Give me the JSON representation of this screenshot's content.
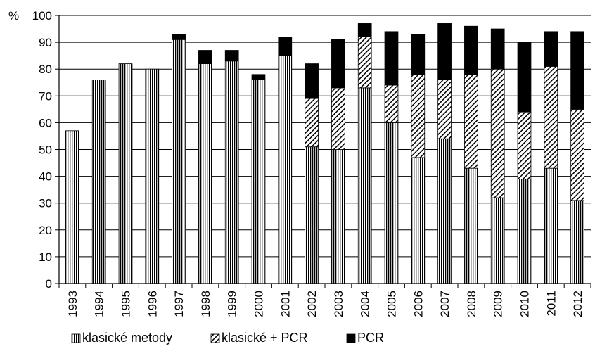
{
  "chart_data": {
    "type": "bar",
    "stacked": true,
    "categories": [
      "1993",
      "1994",
      "1995",
      "1996",
      "1997",
      "1998",
      "1999",
      "2000",
      "2001",
      "2002",
      "2003",
      "2004",
      "2005",
      "2006",
      "2007",
      "2008",
      "2009",
      "2010",
      "2011",
      "2012"
    ],
    "series": [
      {
        "name": "klasické metody",
        "pattern": "vertical-lines",
        "color": "#000000",
        "values": [
          57,
          76,
          82,
          80,
          91,
          82,
          83,
          76,
          85,
          51,
          50,
          73,
          60,
          47,
          54,
          43,
          32,
          39,
          43,
          31
        ]
      },
      {
        "name": "klasické + PCR",
        "pattern": "diagonal-lines",
        "color": "#000000",
        "values": [
          0,
          0,
          0,
          0,
          0,
          0,
          0,
          0,
          0,
          18,
          23,
          19,
          14,
          31,
          22,
          35,
          48,
          25,
          38,
          34
        ]
      },
      {
        "name": "PCR",
        "pattern": "solid",
        "color": "#000000",
        "values": [
          0,
          0,
          0,
          0,
          2,
          5,
          4,
          2,
          7,
          13,
          18,
          5,
          20,
          15,
          21,
          18,
          15,
          26,
          13,
          29
        ]
      }
    ],
    "yticks": [
      "0",
      "10",
      "20",
      "30",
      "40",
      "50",
      "60",
      "70",
      "80",
      "90",
      "100"
    ],
    "unit_label": "%",
    "ylim": [
      0,
      100
    ],
    "grid": true,
    "legend_position": "bottom",
    "title": "",
    "xlabel": "",
    "ylabel": ""
  }
}
